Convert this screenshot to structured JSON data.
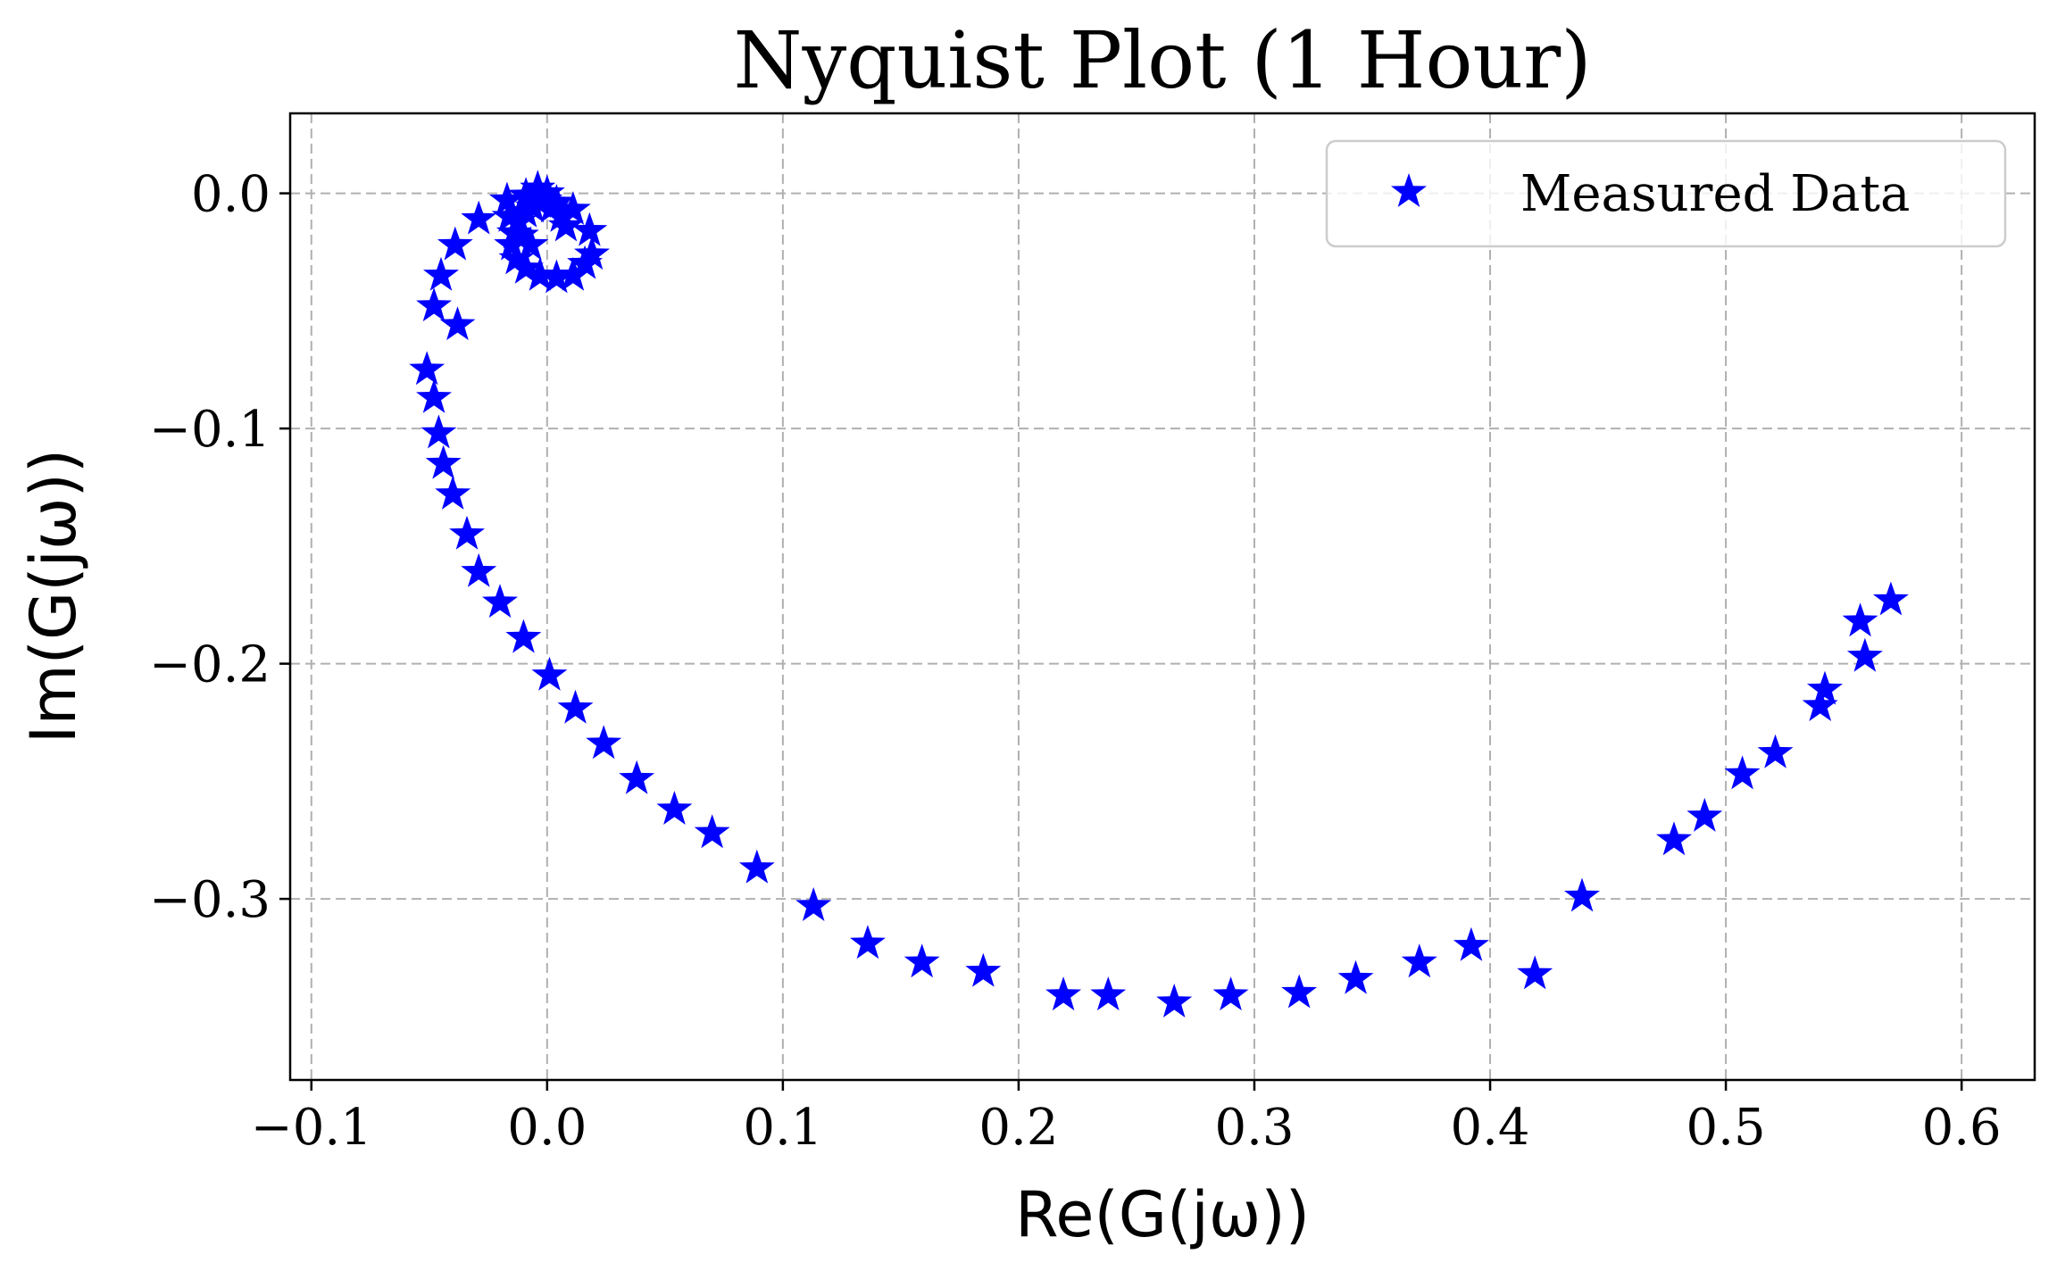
{
  "chart_data": {
    "type": "scatter",
    "title": "Nyquist Plot (1 Hour)",
    "xlabel": "Re(G(jω))",
    "ylabel": "Im(G(jω))",
    "xlim": [
      -0.109,
      0.631
    ],
    "ylim": [
      -0.377,
      0.034
    ],
    "xticks": [
      -0.1,
      0.0,
      0.1,
      0.2,
      0.3,
      0.4,
      0.5,
      0.6
    ],
    "xtick_labels": [
      "−0.1",
      "0.0",
      "0.1",
      "0.2",
      "0.3",
      "0.4",
      "0.5",
      "0.6"
    ],
    "yticks": [
      0.0,
      -0.1,
      -0.2,
      -0.3
    ],
    "ytick_labels": [
      "0.0",
      "−0.1",
      "−0.2",
      "−0.3"
    ],
    "grid": true,
    "legend_position": "top-right",
    "marker": "star",
    "marker_color": "#0000ff",
    "series": [
      {
        "name": "Measured Data",
        "points": [
          [
            0.57,
            -0.173
          ],
          [
            0.557,
            -0.182
          ],
          [
            0.559,
            -0.197
          ],
          [
            0.542,
            -0.211
          ],
          [
            0.54,
            -0.218
          ],
          [
            0.521,
            -0.238
          ],
          [
            0.507,
            -0.247
          ],
          [
            0.491,
            -0.265
          ],
          [
            0.478,
            -0.275
          ],
          [
            0.439,
            -0.299
          ],
          [
            0.419,
            -0.332
          ],
          [
            0.392,
            -0.32
          ],
          [
            0.37,
            -0.327
          ],
          [
            0.343,
            -0.334
          ],
          [
            0.319,
            -0.34
          ],
          [
            0.29,
            -0.341
          ],
          [
            0.266,
            -0.344
          ],
          [
            0.238,
            -0.341
          ],
          [
            0.219,
            -0.341
          ],
          [
            0.185,
            -0.331
          ],
          [
            0.159,
            -0.327
          ],
          [
            0.136,
            -0.319
          ],
          [
            0.113,
            -0.303
          ],
          [
            0.089,
            -0.287
          ],
          [
            0.07,
            -0.272
          ],
          [
            0.054,
            -0.262
          ],
          [
            0.038,
            -0.249
          ],
          [
            0.024,
            -0.234
          ],
          [
            0.012,
            -0.219
          ],
          [
            0.001,
            -0.205
          ],
          [
            -0.01,
            -0.189
          ],
          [
            -0.02,
            -0.174
          ],
          [
            -0.029,
            -0.161
          ],
          [
            -0.034,
            -0.145
          ],
          [
            -0.04,
            -0.128
          ],
          [
            -0.044,
            -0.115
          ],
          [
            -0.046,
            -0.102
          ],
          [
            -0.048,
            -0.087
          ],
          [
            -0.051,
            -0.075
          ],
          [
            -0.038,
            -0.056
          ],
          [
            -0.048,
            -0.048
          ],
          [
            -0.045,
            -0.035
          ],
          [
            -0.039,
            -0.022
          ],
          [
            -0.029,
            -0.011
          ],
          [
            -0.017,
            -0.003
          ],
          [
            -0.009,
            -0.001
          ],
          [
            -0.004,
            0.002
          ],
          [
            0.0,
            0.0
          ],
          [
            0.004,
            -0.004
          ],
          [
            0.011,
            -0.007
          ],
          [
            0.018,
            -0.016
          ],
          [
            0.019,
            -0.026
          ],
          [
            0.016,
            -0.03
          ],
          [
            0.011,
            -0.035
          ],
          [
            0.004,
            -0.036
          ],
          [
            -0.003,
            -0.035
          ],
          [
            -0.009,
            -0.032
          ],
          [
            -0.013,
            -0.028
          ],
          [
            -0.015,
            -0.022
          ],
          [
            -0.014,
            -0.017
          ],
          [
            -0.012,
            -0.012
          ],
          [
            -0.009,
            -0.008
          ],
          [
            -0.006,
            -0.006
          ],
          [
            -0.003,
            -0.004
          ],
          [
            -0.001,
            -0.003
          ],
          [
            0.002,
            -0.006
          ],
          [
            0.006,
            -0.01
          ],
          [
            0.008,
            -0.014
          ],
          [
            -0.016,
            -0.01
          ],
          [
            -0.011,
            -0.018
          ],
          [
            -0.007,
            -0.022
          ]
        ]
      }
    ]
  }
}
